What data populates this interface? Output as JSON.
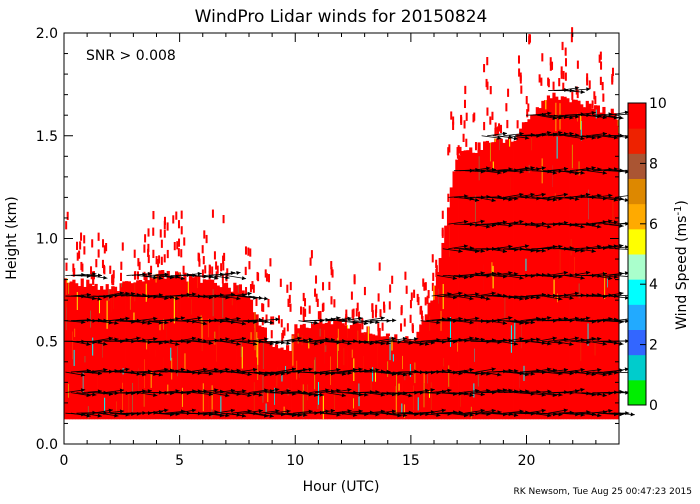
{
  "chart_data": {
    "type": "heatmap",
    "title": "WindPro Lidar winds for 20150824",
    "xlabel": "Hour (UTC)",
    "ylabel": "Height (km)",
    "xlim": [
      0,
      24
    ],
    "ylim": [
      0,
      2.0
    ],
    "xticks": [
      0,
      5,
      10,
      15,
      20
    ],
    "xtick_labels": [
      "0",
      "5",
      "10",
      "15",
      "20"
    ],
    "yticks": [
      0.0,
      0.5,
      1.0,
      1.5,
      2.0
    ],
    "ytick_labels": [
      "0.0",
      "0.5",
      "1.0",
      "1.5",
      "2.0"
    ],
    "annotation": "SNR > 0.008",
    "colorbar": {
      "label_text": "Wind Speed (ms",
      "label_superscript": "-1",
      "label_close": ")",
      "range": [
        0,
        10
      ],
      "ticks": [
        0,
        2,
        4,
        6,
        8,
        10
      ],
      "tick_labels": [
        "0",
        "2",
        "4",
        "6",
        "8",
        "10"
      ],
      "colors": [
        "#00ee00",
        "#00cccc",
        "#3366ff",
        "#22aaff",
        "#00ffff",
        "#aaffcc",
        "#ffff00",
        "#ffaa00",
        "#dd8800",
        "#aa5533",
        "#ee2200",
        "#ff0000"
      ]
    },
    "data_top_km": [
      {
        "hour": 0.0,
        "top_km": 0.8
      },
      {
        "hour": 2.0,
        "top_km": 0.75
      },
      {
        "hour": 4.0,
        "top_km": 0.83
      },
      {
        "hour": 6.0,
        "top_km": 0.8
      },
      {
        "hour": 7.8,
        "top_km": 0.75
      },
      {
        "hour": 8.9,
        "top_km": 0.5
      },
      {
        "hour": 9.8,
        "top_km": 0.47
      },
      {
        "hour": 10.0,
        "top_km": 0.56
      },
      {
        "hour": 11.5,
        "top_km": 0.6
      },
      {
        "hour": 13.5,
        "top_km": 0.55
      },
      {
        "hour": 15.2,
        "top_km": 0.5
      },
      {
        "hour": 16.0,
        "top_km": 0.75
      },
      {
        "hour": 17.0,
        "top_km": 1.4
      },
      {
        "hour": 18.0,
        "top_km": 1.45
      },
      {
        "hour": 19.5,
        "top_km": 1.5
      },
      {
        "hour": 21.0,
        "top_km": 1.7
      },
      {
        "hour": 22.5,
        "top_km": 1.65
      },
      {
        "hour": 24.0,
        "top_km": 1.6
      }
    ],
    "wind_barb_heights_km": [
      0.15,
      0.25,
      0.35,
      0.5,
      0.6,
      0.72,
      0.82,
      0.95,
      1.07,
      1.2,
      1.33,
      1.5,
      1.6,
      1.72
    ],
    "dominant_speed_ms": 10
  },
  "footer": "RK Newsom, Tue Aug 25 00:47:23 2015"
}
